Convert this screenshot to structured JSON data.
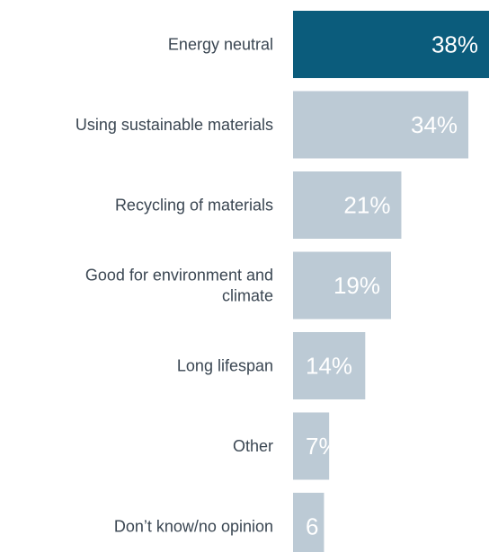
{
  "chart_data": {
    "type": "bar",
    "orientation": "horizontal",
    "categories": [
      [
        "Energy neutral"
      ],
      [
        "Using sustainable materials"
      ],
      [
        "Recycling of materials"
      ],
      [
        "Good for environment and",
        "climate"
      ],
      [
        "Long lifespan"
      ],
      [
        "Other"
      ],
      [
        "Don’t know/no opinion"
      ]
    ],
    "values": [
      38,
      34,
      21,
      19,
      14,
      7,
      6
    ],
    "value_labels": [
      "38%",
      "34%",
      "21%",
      "19%",
      "14%",
      "7%",
      "6"
    ],
    "unit": "%",
    "title": "",
    "xlabel": "",
    "ylabel": "",
    "xlim": [
      0,
      38
    ],
    "grid": false,
    "legend": "none",
    "highlight_index": 0,
    "colors": {
      "highlight": "#0b5c7c",
      "bar": "#bccad5",
      "label_text": "#3a4652",
      "value_text": "#ffffff"
    }
  }
}
